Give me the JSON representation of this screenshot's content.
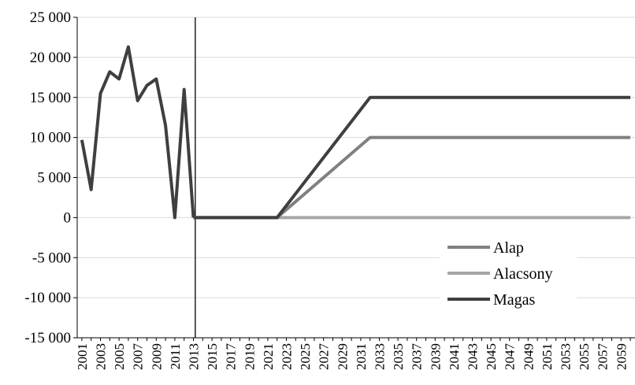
{
  "chart_data": {
    "type": "line",
    "title": "",
    "xlabel": "",
    "ylabel": "",
    "ylim": [
      -15000,
      25000
    ],
    "yticks": [
      -15000,
      -10000,
      -5000,
      0,
      5000,
      10000,
      15000,
      20000,
      25000
    ],
    "ytick_labels": [
      "-15 000",
      "-10 000",
      "-5 000",
      "0",
      "5 000",
      "10 000",
      "15 000",
      "20 000",
      "25 000"
    ],
    "xlim": [
      2001,
      2060
    ],
    "xtick_labels": [
      "2001",
      "2003",
      "2005",
      "2007",
      "2009",
      "2011",
      "2013",
      "2015",
      "2017",
      "2019",
      "2021",
      "2023",
      "2025",
      "2027",
      "2029",
      "2031",
      "2033",
      "2035",
      "2037",
      "2039",
      "2041",
      "2043",
      "2045",
      "2047",
      "2049",
      "2051",
      "2053",
      "2055",
      "2057",
      "2059"
    ],
    "grid": true,
    "vertical_marker_x": 2013.2,
    "legend_position": "center-right",
    "colors": {
      "Alap": "#808080",
      "Alacsony": "#a6a6a6",
      "Magas": "#3f3f3f"
    },
    "historical": {
      "x": [
        2001,
        2002,
        2003,
        2004,
        2005,
        2006,
        2007,
        2008,
        2009,
        2010,
        2011,
        2012,
        2013
      ],
      "y": [
        9700,
        3500,
        15500,
        18200,
        17300,
        21300,
        14600,
        16500,
        17300,
        11500,
        0,
        16000,
        0
      ]
    },
    "series": [
      {
        "name": "Alap",
        "x": [
          2013,
          2022,
          2032,
          2060
        ],
        "y": [
          0,
          0,
          10000,
          10000
        ]
      },
      {
        "name": "Alacsony",
        "x": [
          2013,
          2060
        ],
        "y": [
          0,
          0
        ]
      },
      {
        "name": "Magas",
        "x": [
          2013,
          2022,
          2032,
          2060
        ],
        "y": [
          0,
          0,
          15000,
          15000
        ]
      }
    ]
  }
}
